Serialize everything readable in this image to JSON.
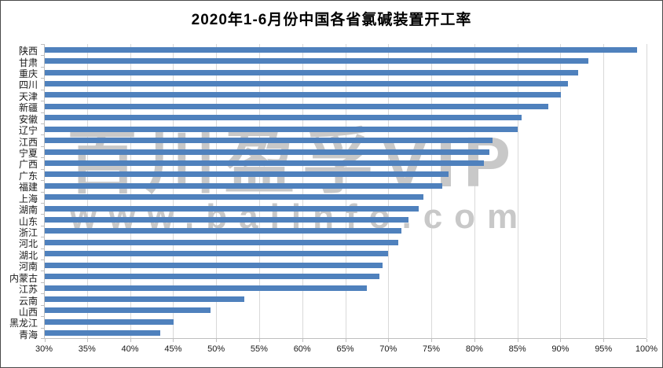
{
  "title": "2020年1-6月份中国各省氯碱装置开工率",
  "watermark": {
    "line1": "百川盈孚VIP",
    "line2": "www.baiinfo.com"
  },
  "colors": {
    "bar": "#4f81bd",
    "gridline": "#d9d9d9",
    "axis": "#bfbfbf",
    "label_text": "#1a1a1a",
    "watermark": "#c8c8c8",
    "frame_border": "#4a4a4a"
  },
  "chart_data": {
    "type": "bar",
    "orientation": "horizontal",
    "title": "2020年1-6月份中国各省氯碱装置开工率",
    "xlabel": "",
    "ylabel": "",
    "unit": "%",
    "xlim": [
      30,
      100
    ],
    "grid": true,
    "legend": false,
    "x_ticks": [
      "30%",
      "35%",
      "40%",
      "45%",
      "50%",
      "55%",
      "60%",
      "65%",
      "70%",
      "75%",
      "80%",
      "85%",
      "90%",
      "95%",
      "100%"
    ],
    "categories": [
      "陕西",
      "甘肃",
      "重庆",
      "四川",
      "天津",
      "新疆",
      "安徽",
      "辽宁",
      "江西",
      "宁夏",
      "广西",
      "广东",
      "福建",
      "上海",
      "湖南",
      "山东",
      "浙江",
      "河北",
      "湖北",
      "河南",
      "内蒙古",
      "江苏",
      "云南",
      "山西",
      "黑龙江",
      "青海"
    ],
    "values": [
      98.8,
      93.2,
      92.0,
      90.8,
      90.0,
      88.5,
      85.4,
      84.9,
      82.0,
      81.7,
      81.0,
      76.9,
      76.2,
      74.0,
      73.4,
      72.3,
      71.4,
      71.1,
      69.9,
      69.2,
      68.9,
      67.4,
      53.2,
      49.3,
      45.0,
      43.4
    ]
  }
}
